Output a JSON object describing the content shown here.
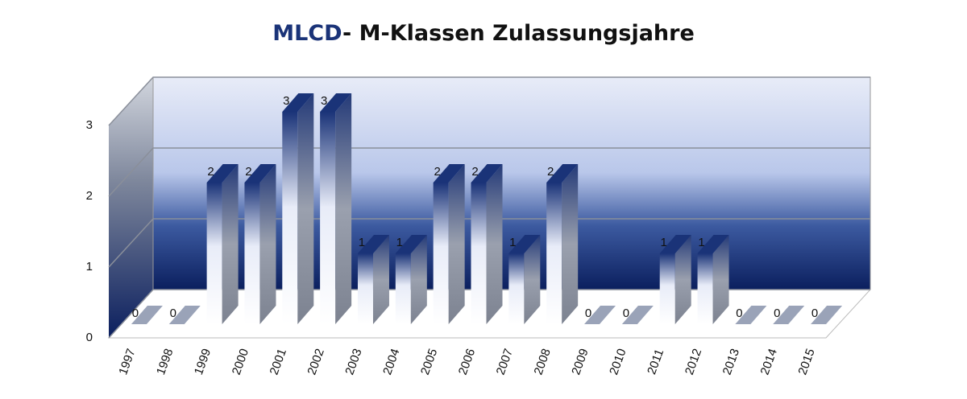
{
  "chart_data": {
    "type": "bar3d",
    "title": [
      "MLCD",
      "- M-Klassen Zulassungsjahre"
    ],
    "categories": [
      "1997",
      "1998",
      "1999",
      "2000",
      "2001",
      "2002",
      "2003",
      "2004",
      "2005",
      "2006",
      "2007",
      "2008",
      "2009",
      "2010",
      "2011",
      "2012",
      "2013",
      "2014",
      "2015"
    ],
    "values": [
      0,
      0,
      2,
      2,
      3,
      3,
      1,
      1,
      2,
      2,
      1,
      2,
      0,
      0,
      1,
      1,
      0,
      0,
      0
    ],
    "ylim": [
      0,
      3
    ],
    "yticks": [
      0,
      1,
      2,
      3
    ],
    "grid": true,
    "color": "#1a3378"
  }
}
